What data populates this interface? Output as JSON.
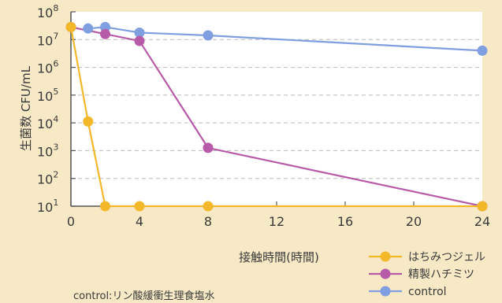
{
  "chart_data": {
    "type": "line",
    "xlabel": "接触時間(時間)",
    "ylabel": "生菌数 CFU/mL",
    "xlim": [
      0,
      24
    ],
    "ylim": [
      1,
      8
    ],
    "y_scale": "log10",
    "x_ticks": [
      "0",
      "4",
      "8",
      "12",
      "16",
      "20",
      "24"
    ],
    "y_ticks": [
      {
        "base": "10",
        "exp": "1"
      },
      {
        "base": "10",
        "exp": "2"
      },
      {
        "base": "10",
        "exp": "3"
      },
      {
        "base": "10",
        "exp": "4"
      },
      {
        "base": "10",
        "exp": "5"
      },
      {
        "base": "10",
        "exp": "6"
      },
      {
        "base": "10",
        "exp": "7"
      },
      {
        "base": "10",
        "exp": "8"
      }
    ],
    "grid": "horizontal dashed",
    "legend_position": "bottom-right",
    "series": [
      {
        "name": "はちみつジェル",
        "color": "#f3b82a",
        "points": [
          [
            0,
            7.45
          ],
          [
            1,
            4.05
          ],
          [
            2,
            1.0
          ],
          [
            4,
            1.0
          ],
          [
            8,
            1.0
          ],
          [
            24,
            1.0
          ]
        ]
      },
      {
        "name": "精製ハチミツ",
        "color": "#b75aa8",
        "points": [
          [
            0,
            7.45
          ],
          [
            2,
            7.2
          ],
          [
            4,
            6.95
          ],
          [
            8,
            3.1
          ],
          [
            24,
            1.0
          ]
        ]
      },
      {
        "name": "control",
        "color": "#7f9fe0",
        "points": [
          [
            1,
            7.4
          ],
          [
            2,
            7.45
          ],
          [
            4,
            7.25
          ],
          [
            8,
            7.15
          ],
          [
            24,
            6.6
          ]
        ]
      }
    ],
    "footnote": "control:リン酸緩衝生理食塩水"
  }
}
